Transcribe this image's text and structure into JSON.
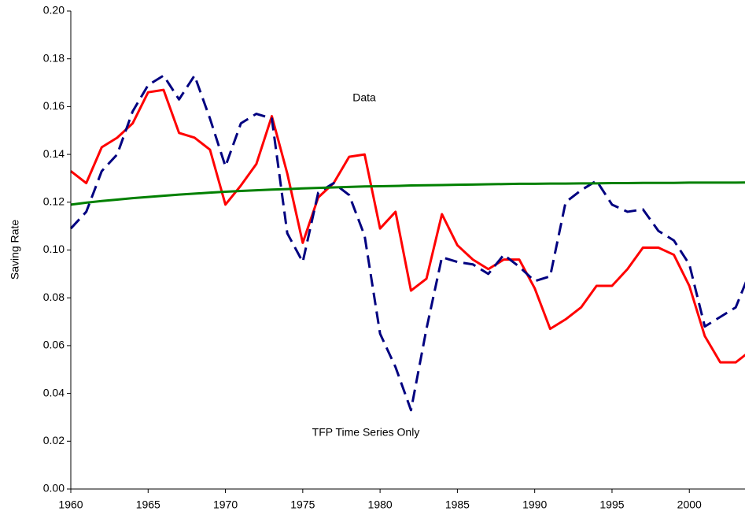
{
  "chart_data": {
    "type": "line",
    "y_label": "Saving Rate",
    "x": [
      1960,
      1961,
      1962,
      1963,
      1964,
      1965,
      1966,
      1967,
      1968,
      1969,
      1970,
      1971,
      1972,
      1973,
      1974,
      1975,
      1976,
      1977,
      1978,
      1979,
      1980,
      1981,
      1982,
      1983,
      1984,
      1985,
      1986,
      1987,
      1988,
      1989,
      1990,
      1991,
      1992,
      1993,
      1994,
      1995,
      1996,
      1997,
      1998,
      1999,
      2000,
      2001,
      2002,
      2003,
      2004
    ],
    "series": [
      {
        "name": "Data",
        "color": "#ff0000",
        "dashed": false,
        "values": [
          0.133,
          0.128,
          0.143,
          0.147,
          0.153,
          0.166,
          0.167,
          0.149,
          0.147,
          0.142,
          0.119,
          0.127,
          0.136,
          0.156,
          0.132,
          0.103,
          0.122,
          0.128,
          0.139,
          0.14,
          0.109,
          0.116,
          0.083,
          0.088,
          0.115,
          0.102,
          0.096,
          0.092,
          0.096,
          0.096,
          0.084,
          0.067,
          0.071,
          0.076,
          0.085,
          0.085,
          0.092,
          0.101,
          0.101,
          0.098,
          0.085,
          0.064,
          0.053,
          0.053,
          0.058
        ]
      },
      {
        "name": "TFP Time Series Only",
        "color": "#000080",
        "dashed": true,
        "values": [
          0.109,
          0.116,
          0.133,
          0.14,
          0.158,
          0.169,
          0.173,
          0.163,
          0.173,
          0.155,
          0.135,
          0.153,
          0.157,
          0.155,
          0.107,
          0.095,
          0.124,
          0.128,
          0.123,
          0.106,
          0.065,
          0.051,
          0.033,
          0.067,
          0.097,
          0.095,
          0.094,
          0.09,
          0.098,
          0.093,
          0.087,
          0.089,
          0.12,
          0.125,
          0.129,
          0.119,
          0.116,
          0.117,
          0.108,
          0.104,
          0.094,
          0.068,
          0.072,
          0.076,
          0.092
        ]
      },
      {
        "color": "#008000",
        "dashed": false,
        "values": [
          0.119,
          0.1198,
          0.1205,
          0.1211,
          0.1217,
          0.1222,
          0.1227,
          0.1232,
          0.1236,
          0.124,
          0.1244,
          0.1247,
          0.125,
          0.1253,
          0.1255,
          0.1258,
          0.126,
          0.1262,
          0.1264,
          0.1266,
          0.1267,
          0.1268,
          0.127,
          0.1271,
          0.1272,
          0.1273,
          0.1274,
          0.1275,
          0.1276,
          0.1277,
          0.1277,
          0.1278,
          0.1278,
          0.1279,
          0.1279,
          0.128,
          0.128,
          0.1281,
          0.1281,
          0.1281,
          0.1282,
          0.1282,
          0.1282,
          0.1282,
          0.1283
        ]
      }
    ],
    "xlim": [
      1960,
      2003.6
    ],
    "ylim": [
      0,
      0.2
    ],
    "xticks": [
      1960,
      1965,
      1970,
      1975,
      1980,
      1985,
      1990,
      1995,
      2000
    ],
    "yticks": [
      {
        "value": 0,
        "label": "0.00"
      },
      {
        "value": 0.02,
        "label": "0.02"
      },
      {
        "value": 0.04,
        "label": "0.04"
      },
      {
        "value": 0.06,
        "label": "0.06"
      },
      {
        "value": 0.08,
        "label": "0.08"
      },
      {
        "value": 0.1,
        "label": "0.10"
      },
      {
        "value": 0.12,
        "label": "0.12"
      },
      {
        "value": 0.14,
        "label": "0.14"
      },
      {
        "value": 0.16,
        "label": "0.16"
      },
      {
        "value": 0.18,
        "label": "0.18"
      },
      {
        "value": 0.2,
        "label": "0.20"
      }
    ],
    "grid": false
  }
}
